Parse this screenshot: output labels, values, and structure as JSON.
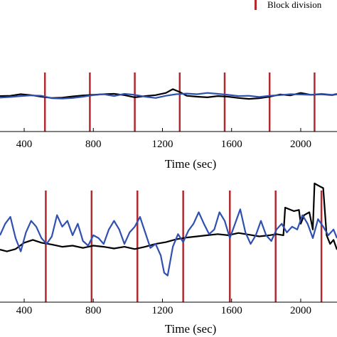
{
  "chart_data": [
    {
      "type": "line",
      "xlabel": "Time (sec)",
      "ylabel": "",
      "xlim": [
        260,
        2210
      ],
      "ylim": [
        -1,
        1
      ],
      "xticks": [
        400,
        800,
        1200,
        1600,
        2000
      ],
      "x_tick_labels": [
        "400",
        "800",
        "1200",
        "1600",
        "2000"
      ],
      "block_divisions": [
        520,
        780,
        1040,
        1300,
        1560,
        1820,
        2080
      ],
      "series": [
        {
          "color": "#000000",
          "x": [
            260,
            320,
            380,
            440,
            500,
            560,
            620,
            680,
            740,
            800,
            860,
            920,
            980,
            1040,
            1100,
            1160,
            1220,
            1260,
            1300,
            1340,
            1400,
            1460,
            1520,
            1580,
            1640,
            1700,
            1760,
            1820,
            1880,
            1940,
            2000,
            2060,
            2120,
            2180,
            2210
          ],
          "y": [
            0.02,
            0.03,
            0.08,
            0.05,
            0.0,
            -0.04,
            -0.03,
            0.01,
            0.04,
            0.06,
            0.08,
            0.09,
            0.05,
            -0.02,
            0.02,
            0.05,
            0.12,
            0.24,
            0.15,
            0.03,
            0.0,
            -0.02,
            0.02,
            0.0,
            -0.04,
            -0.07,
            -0.05,
            0.0,
            0.07,
            0.04,
            0.12,
            0.06,
            0.08,
            0.05,
            0.08
          ]
        },
        {
          "color": "#3050b0",
          "x": [
            260,
            320,
            380,
            440,
            500,
            560,
            620,
            680,
            740,
            800,
            860,
            920,
            980,
            1040,
            1100,
            1160,
            1220,
            1280,
            1340,
            1400,
            1460,
            1520,
            1580,
            1640,
            1700,
            1760,
            1820,
            1880,
            1940,
            2000,
            2060,
            2120,
            2180,
            2210
          ],
          "y": [
            -0.03,
            -0.01,
            0.02,
            0.04,
            0.03,
            -0.05,
            -0.06,
            -0.04,
            0.0,
            0.05,
            0.08,
            0.02,
            0.09,
            0.06,
            0.0,
            -0.04,
            0.03,
            0.08,
            0.1,
            0.08,
            0.12,
            0.09,
            0.06,
            0.02,
            0.03,
            -0.01,
            0.03,
            0.05,
            0.08,
            0.07,
            0.06,
            0.09,
            0.06,
            0.09
          ]
        }
      ]
    },
    {
      "type": "line",
      "xlabel": "Time (sec)",
      "ylabel": "",
      "xlim": [
        260,
        2210
      ],
      "ylim": [
        -1,
        1
      ],
      "xticks": [
        400,
        800,
        1200,
        1600,
        2000
      ],
      "x_tick_labels": [
        "400",
        "800",
        "1200",
        "1600",
        "2000"
      ],
      "block_divisions": [
        525,
        790,
        1055,
        1320,
        1590,
        1855,
        2120
      ],
      "series": [
        {
          "color": "#000000",
          "x": [
            260,
            300,
            350,
            400,
            450,
            500,
            560,
            620,
            680,
            740,
            800,
            860,
            920,
            980,
            1040,
            1100,
            1160,
            1220,
            1280,
            1340,
            1400,
            1460,
            1520,
            1580,
            1640,
            1700,
            1760,
            1820,
            1860,
            1900,
            1910,
            1960,
            1990,
            2000,
            2020,
            2050,
            2070,
            2080,
            2110,
            2130,
            2150,
            2170,
            2190,
            2210
          ],
          "y": [
            -0.15,
            -0.18,
            -0.14,
            -0.03,
            0.02,
            -0.03,
            -0.06,
            -0.1,
            -0.08,
            -0.12,
            -0.08,
            -0.1,
            -0.13,
            -0.1,
            -0.14,
            -0.1,
            -0.05,
            -0.02,
            0.03,
            0.06,
            0.08,
            0.1,
            0.12,
            0.1,
            0.14,
            0.11,
            0.08,
            0.1,
            0.12,
            0.1,
            0.58,
            0.52,
            0.54,
            0.3,
            0.45,
            0.5,
            0.2,
            1.0,
            0.95,
            0.92,
            0.1,
            -0.05,
            0.02,
            -0.15
          ]
        },
        {
          "color": "#3050b0",
          "x": [
            260,
            290,
            320,
            350,
            380,
            410,
            440,
            470,
            500,
            530,
            560,
            590,
            620,
            650,
            680,
            710,
            740,
            770,
            800,
            830,
            860,
            890,
            920,
            950,
            980,
            1010,
            1040,
            1070,
            1100,
            1130,
            1160,
            1190,
            1210,
            1230,
            1260,
            1290,
            1320,
            1350,
            1380,
            1410,
            1440,
            1470,
            1500,
            1530,
            1560,
            1590,
            1620,
            1650,
            1680,
            1710,
            1740,
            1770,
            1800,
            1830,
            1860,
            1890,
            1920,
            1950,
            1980,
            2010,
            2040,
            2070,
            2100,
            2130,
            2160,
            2190,
            2210
          ],
          "y": [
            0.1,
            0.3,
            0.42,
            0.05,
            -0.18,
            0.15,
            0.35,
            0.25,
            0.05,
            -0.05,
            0.08,
            0.45,
            0.25,
            0.35,
            0.1,
            0.3,
            0.0,
            -0.08,
            0.1,
            0.05,
            -0.05,
            0.2,
            0.35,
            0.2,
            -0.05,
            0.15,
            0.25,
            0.42,
            0.15,
            -0.12,
            -0.05,
            -0.25,
            -0.55,
            -0.6,
            -0.1,
            0.12,
            -0.02,
            0.18,
            0.3,
            0.5,
            0.3,
            0.12,
            0.2,
            0.5,
            0.35,
            0.05,
            0.3,
            0.55,
            0.15,
            -0.05,
            0.1,
            0.35,
            0.1,
            0.0,
            0.2,
            0.3,
            0.15,
            0.25,
            0.2,
            0.45,
            0.3,
            0.05,
            0.38,
            0.25,
            0.1,
            0.2,
            0.05
          ]
        }
      ]
    }
  ],
  "legend": {
    "label": "Block division",
    "color": "#b02a30"
  }
}
